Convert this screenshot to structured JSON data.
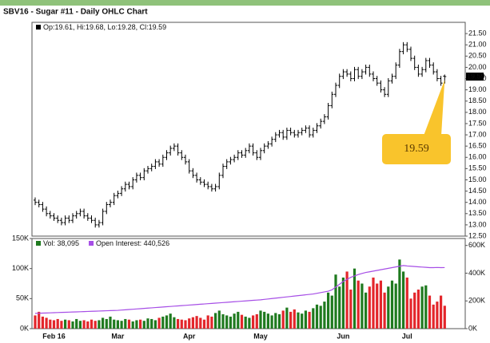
{
  "chart_data": [
    {
      "type": "ohlc",
      "title": "SBV16 - Sugar #11 - Daily OHLC Chart",
      "legend": "Op:19.61, Hi:19.68, Lo:19.28, Cl:19.59",
      "last_price": 19.59,
      "callout": 19.59,
      "color": "#000000",
      "callout_color": "#f9c42c",
      "categories": [
        null,
        null,
        null,
        null,
        null,
        "Feb 16",
        null,
        null,
        null,
        null,
        null,
        null,
        null,
        null,
        null,
        null,
        null,
        null,
        null,
        null,
        null,
        null,
        "Mar",
        null,
        null,
        null,
        null,
        null,
        null,
        null,
        null,
        null,
        null,
        null,
        null,
        null,
        null,
        null,
        null,
        null,
        null,
        "Apr",
        null,
        null,
        null,
        null,
        null,
        null,
        null,
        null,
        null,
        null,
        null,
        null,
        null,
        null,
        null,
        null,
        null,
        null,
        "May",
        null,
        null,
        null,
        null,
        null,
        null,
        null,
        null,
        null,
        null,
        null,
        null,
        null,
        null,
        null,
        null,
        null,
        null,
        null,
        null,
        null,
        "Jun",
        null,
        null,
        null,
        null,
        null,
        null,
        null,
        null,
        null,
        null,
        null,
        null,
        null,
        null,
        null,
        null,
        "Jul",
        null,
        null,
        null,
        null,
        null,
        null,
        null,
        null,
        null,
        null
      ],
      "open": [
        14.1,
        14.0,
        13.9,
        13.7,
        13.5,
        13.4,
        13.3,
        13.2,
        13.1,
        13.3,
        13.2,
        13.4,
        13.5,
        13.6,
        13.4,
        13.3,
        13.2,
        13.0,
        13.1,
        13.6,
        13.9,
        14.0,
        14.3,
        14.4,
        14.6,
        14.8,
        14.7,
        15.0,
        15.2,
        15.1,
        15.4,
        15.5,
        15.6,
        15.8,
        15.7,
        16.0,
        16.2,
        16.4,
        16.5,
        16.2,
        16.0,
        15.8,
        15.4,
        15.2,
        15.0,
        14.9,
        14.8,
        14.7,
        14.6,
        14.7,
        15.2,
        15.6,
        15.8,
        15.9,
        16.0,
        16.2,
        16.1,
        16.3,
        16.5,
        16.2,
        16.0,
        16.3,
        16.5,
        16.6,
        16.8,
        17.0,
        17.1,
        16.9,
        17.2,
        17.1,
        17.0,
        17.1,
        17.2,
        17.3,
        17.0,
        17.2,
        17.4,
        17.6,
        17.8,
        18.3,
        18.8,
        19.2,
        19.6,
        19.8,
        19.7,
        19.5,
        19.9,
        19.6,
        19.8,
        20.0,
        19.7,
        19.5,
        19.3,
        19.0,
        18.8,
        19.4,
        19.6,
        20.1,
        20.7,
        21.0,
        20.8,
        20.4,
        20.0,
        19.7,
        19.9,
        20.3,
        20.1,
        19.8,
        19.5,
        19.61
      ],
      "high": [
        14.22,
        14.12,
        14.02,
        13.82,
        13.62,
        13.52,
        13.42,
        13.32,
        13.42,
        13.42,
        13.52,
        13.62,
        13.72,
        13.72,
        13.52,
        13.42,
        13.32,
        13.22,
        13.72,
        14.02,
        14.12,
        14.42,
        14.52,
        14.72,
        14.92,
        14.92,
        15.12,
        15.32,
        15.32,
        15.52,
        15.62,
        15.72,
        15.92,
        15.92,
        16.12,
        16.32,
        16.52,
        16.62,
        16.62,
        16.32,
        16.12,
        15.92,
        15.52,
        15.32,
        15.12,
        15.02,
        14.92,
        14.82,
        14.82,
        15.32,
        15.72,
        15.92,
        16.02,
        16.12,
        16.32,
        16.32,
        16.42,
        16.62,
        16.62,
        16.32,
        16.42,
        16.62,
        16.72,
        16.92,
        17.12,
        17.22,
        17.22,
        17.32,
        17.32,
        17.22,
        17.22,
        17.32,
        17.42,
        17.42,
        17.32,
        17.52,
        17.72,
        17.92,
        18.42,
        18.92,
        19.32,
        19.72,
        19.92,
        19.92,
        19.82,
        20.02,
        20.02,
        19.92,
        20.12,
        20.12,
        19.82,
        19.62,
        19.42,
        19.12,
        19.52,
        19.72,
        20.22,
        20.82,
        21.12,
        21.12,
        20.92,
        20.52,
        20.12,
        20.02,
        20.42,
        20.42,
        20.22,
        19.92,
        19.62,
        19.68
      ],
      "low": [
        13.88,
        13.78,
        13.58,
        13.38,
        13.28,
        13.18,
        13.08,
        12.98,
        12.98,
        13.08,
        13.08,
        13.28,
        13.38,
        13.28,
        13.18,
        13.08,
        12.88,
        12.88,
        12.98,
        13.48,
        13.78,
        13.88,
        14.18,
        14.28,
        14.48,
        14.58,
        14.58,
        14.88,
        14.98,
        14.98,
        15.28,
        15.38,
        15.48,
        15.58,
        15.58,
        15.88,
        16.08,
        16.28,
        16.08,
        15.88,
        15.68,
        15.28,
        15.08,
        14.88,
        14.78,
        14.68,
        14.58,
        14.48,
        14.48,
        14.58,
        15.08,
        15.48,
        15.68,
        15.78,
        15.88,
        15.98,
        15.98,
        16.18,
        16.08,
        15.88,
        15.88,
        16.18,
        16.38,
        16.48,
        16.68,
        16.88,
        16.78,
        16.78,
        16.98,
        16.88,
        16.88,
        16.98,
        17.08,
        16.88,
        16.88,
        17.08,
        17.28,
        17.48,
        17.68,
        18.18,
        18.68,
        19.08,
        19.48,
        19.58,
        19.38,
        19.38,
        19.48,
        19.48,
        19.68,
        19.58,
        19.38,
        19.18,
        18.88,
        18.68,
        18.68,
        19.28,
        19.48,
        19.98,
        20.58,
        20.68,
        20.28,
        19.88,
        19.58,
        19.58,
        19.78,
        19.98,
        19.68,
        19.38,
        19.18,
        19.28
      ],
      "close": [
        14.0,
        13.9,
        13.7,
        13.5,
        13.4,
        13.3,
        13.2,
        13.1,
        13.3,
        13.2,
        13.4,
        13.5,
        13.6,
        13.4,
        13.3,
        13.2,
        13.0,
        13.1,
        13.6,
        13.9,
        14.0,
        14.3,
        14.4,
        14.6,
        14.8,
        14.7,
        15.0,
        15.2,
        15.1,
        15.4,
        15.5,
        15.6,
        15.8,
        15.7,
        16.0,
        16.2,
        16.4,
        16.5,
        16.2,
        16.0,
        15.8,
        15.4,
        15.2,
        15.0,
        14.9,
        14.8,
        14.7,
        14.6,
        14.7,
        15.2,
        15.6,
        15.8,
        15.9,
        16.0,
        16.2,
        16.1,
        16.3,
        16.5,
        16.2,
        16.0,
        16.3,
        16.5,
        16.6,
        16.8,
        17.0,
        17.1,
        16.9,
        17.2,
        17.1,
        17.0,
        17.1,
        17.2,
        17.3,
        17.0,
        17.2,
        17.4,
        17.6,
        17.8,
        18.3,
        18.8,
        19.2,
        19.6,
        19.8,
        19.7,
        19.5,
        19.9,
        19.6,
        19.8,
        20.0,
        19.7,
        19.5,
        19.3,
        19.0,
        18.8,
        19.4,
        19.6,
        20.1,
        20.7,
        21.0,
        20.8,
        20.4,
        20.0,
        19.7,
        19.9,
        20.3,
        20.1,
        19.8,
        19.5,
        19.3,
        19.59
      ],
      "ylim": [
        12.5,
        22.0
      ],
      "yticks": [
        {
          "value": 12.5,
          "label": "12.50"
        },
        {
          "value": 13,
          "label": "13.00"
        },
        {
          "value": 13.5,
          "label": "13.50"
        },
        {
          "value": 14,
          "label": "14.00"
        },
        {
          "value": 14.5,
          "label": "14.50"
        },
        {
          "value": 15,
          "label": "15.00"
        },
        {
          "value": 15.5,
          "label": "15.50"
        },
        {
          "value": 16,
          "label": "16.00"
        },
        {
          "value": 16.5,
          "label": "16.50"
        },
        {
          "value": 17,
          "label": "17.00"
        },
        {
          "value": 17.5,
          "label": "17.50"
        },
        {
          "value": 18,
          "label": "18.00"
        },
        {
          "value": 18.5,
          "label": "18.50"
        },
        {
          "value": 19,
          "label": "19.00"
        },
        {
          "value": 19.5,
          "label": "19.50"
        },
        {
          "value": 20,
          "label": "20.00"
        },
        {
          "value": 20.5,
          "label": "20.50"
        },
        {
          "value": 21,
          "label": "21.00"
        },
        {
          "value": 21.5,
          "label": "21.50"
        }
      ]
    },
    {
      "type": "bar",
      "up_color": "#1f7a1f",
      "down_color": "#e3262b",
      "series": [
        {
          "name": "Vol: 38,095",
          "color": "#1f7a1f",
          "values": [
            22000,
            28000,
            20000,
            18000,
            15000,
            14000,
            16000,
            13000,
            15000,
            14000,
            12000,
            16000,
            13000,
            14000,
            12000,
            15000,
            13000,
            14000,
            18000,
            16000,
            20000,
            15000,
            14000,
            13000,
            16000,
            15000,
            12000,
            14000,
            15000,
            13000,
            17000,
            16000,
            14000,
            18000,
            20000,
            22000,
            25000,
            19000,
            16000,
            15000,
            14000,
            17000,
            19000,
            21000,
            18000,
            15000,
            22000,
            20000,
            26000,
            30000,
            24000,
            22000,
            20000,
            25000,
            28000,
            23000,
            20000,
            18000,
            22000,
            24000,
            30000,
            28000,
            25000,
            22000,
            26000,
            24000,
            30000,
            35000,
            28000,
            32000,
            27000,
            25000,
            30000,
            28000,
            34000,
            40000,
            38000,
            45000,
            60000,
            55000,
            90000,
            70000,
            85000,
            95000,
            65000,
            100000,
            80000,
            75000,
            60000,
            70000,
            85000,
            75000,
            80000,
            60000,
            70000,
            80000,
            75000,
            115000,
            95000,
            85000,
            50000,
            60000,
            65000,
            70000,
            72000,
            55000,
            40000,
            45000,
            55000,
            38095
          ]
        },
        {
          "name": "Open Interest: 440,526",
          "color": "#a64ee6",
          "axis": "y2",
          "values": [
            110000,
            111000,
            112000,
            113000,
            114000,
            115000,
            116000,
            117000,
            118000,
            119000,
            120000,
            121000,
            122000,
            123000,
            124000,
            125000,
            126000,
            127000,
            128000,
            129000,
            130000,
            131000,
            132000,
            134000,
            136000,
            138000,
            140000,
            142000,
            144000,
            146000,
            148000,
            150000,
            152000,
            154000,
            156000,
            158000,
            160000,
            162000,
            164000,
            166000,
            168000,
            170000,
            172000,
            174000,
            176000,
            178000,
            180000,
            182000,
            184000,
            186000,
            188000,
            190000,
            192000,
            194000,
            196000,
            198000,
            200000,
            202000,
            204000,
            206000,
            208000,
            211000,
            214000,
            217000,
            220000,
            223000,
            226000,
            229000,
            232000,
            235000,
            238000,
            241000,
            244000,
            247000,
            250000,
            255000,
            260000,
            265000,
            270000,
            280000,
            300000,
            320000,
            340000,
            355000,
            370000,
            380000,
            390000,
            398000,
            405000,
            410000,
            415000,
            420000,
            425000,
            430000,
            435000,
            440000,
            445000,
            450000,
            455000,
            452000,
            450000,
            448000,
            446000,
            444000,
            442000,
            440000,
            440000,
            441000,
            440000,
            440526
          ]
        }
      ],
      "ylim": [
        0,
        150000
      ],
      "yticks": [
        {
          "value": 0,
          "label": "0K"
        },
        {
          "value": 50000,
          "label": "50K"
        },
        {
          "value": 100000,
          "label": "100K"
        },
        {
          "value": 150000,
          "label": "150K"
        }
      ],
      "y2lim": [
        0,
        650000
      ],
      "y2ticks": [
        {
          "value": 0,
          "label": "0K"
        },
        {
          "value": 200000,
          "label": "200K"
        },
        {
          "value": 400000,
          "label": "400K"
        },
        {
          "value": 600000,
          "label": "600K"
        }
      ]
    }
  ]
}
